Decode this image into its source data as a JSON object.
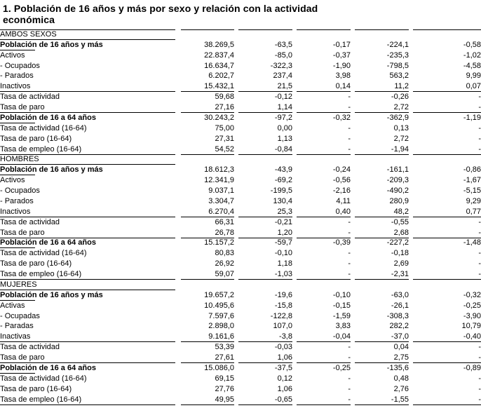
{
  "title": "1. Población de 16 años y más por sexo y relación con la actividad económica",
  "colors": {
    "text": "#000000",
    "background": "#ffffff",
    "rule": "#000000"
  },
  "table": {
    "column_count": 5,
    "empty_value": "-",
    "sections": [
      {
        "name": "AMBOS SEXOS",
        "top_rule": true,
        "rows": [
          {
            "label": "Población de 16 años y más",
            "type": "total",
            "values": [
              "38.269,5",
              "-63,5",
              "-0,17",
              "-224,1",
              "-0,58"
            ]
          },
          {
            "label": "Activos",
            "type": "plain",
            "values": [
              "22.837,4",
              "-85,0",
              "-0,37",
              "-235,3",
              "-1,02"
            ]
          },
          {
            "label": "- Ocupados",
            "type": "plain",
            "values": [
              "16.634,7",
              "-322,3",
              "-1,90",
              "-798,5",
              "-4,58"
            ]
          },
          {
            "label": "- Parados",
            "type": "plain",
            "values": [
              "6.202,7",
              "237,4",
              "3,98",
              "563,2",
              "9,99"
            ]
          },
          {
            "label": "Inactivos",
            "type": "plain",
            "rule_below": true,
            "values": [
              "15.432,1",
              "21,5",
              "0,14",
              "11,2",
              "0,07"
            ]
          },
          {
            "label": "Tasa de actividad",
            "type": "plain",
            "values": [
              "59,68",
              "-0,12",
              "-",
              "-0,26",
              "-"
            ]
          },
          {
            "label": "Tasa de paro",
            "type": "plain",
            "rule_below": true,
            "values": [
              "27,16",
              "1,14",
              "-",
              "2,72",
              "-"
            ]
          },
          {
            "label": "Población de 16 a 64 años",
            "type": "total",
            "values": [
              "30.243,2",
              "-97,2",
              "-0,32",
              "-362,9",
              "-1,19"
            ]
          },
          {
            "label": "Tasa de actividad (16-64)",
            "type": "plain",
            "values": [
              "75,00",
              "0,00",
              "-",
              "0,13",
              "-"
            ]
          },
          {
            "label": "Tasa de paro (16-64)",
            "type": "plain",
            "values": [
              "27,31",
              "1,13",
              "-",
              "2,72",
              "-"
            ]
          },
          {
            "label": "Tasa de empleo (16-64)",
            "type": "plain",
            "rule_below": true,
            "values": [
              "54,52",
              "-0,84",
              "-",
              "-1,94",
              "-"
            ]
          }
        ]
      },
      {
        "name": "HOMBRES",
        "top_rule": false,
        "rows": [
          {
            "label": "Población de 16 años y más",
            "type": "total",
            "values": [
              "18.612,3",
              "-43,9",
              "-0,24",
              "-161,1",
              "-0,86"
            ]
          },
          {
            "label": "Activos",
            "type": "plain",
            "values": [
              "12.341,9",
              "-69,2",
              "-0,56",
              "-209,3",
              "-1,67"
            ]
          },
          {
            "label": "- Ocupados",
            "type": "plain",
            "values": [
              "9.037,1",
              "-199,5",
              "-2,16",
              "-490,2",
              "-5,15"
            ]
          },
          {
            "label": "- Parados",
            "type": "plain",
            "values": [
              "3.304,7",
              "130,4",
              "4,11",
              "280,9",
              "9,29"
            ]
          },
          {
            "label": "Inactivos",
            "type": "plain",
            "rule_below": true,
            "values": [
              "6.270,4",
              "25,3",
              "0,40",
              "48,2",
              "0,77"
            ]
          },
          {
            "label": "Tasa de actividad",
            "type": "plain",
            "values": [
              "66,31",
              "-0,21",
              "-",
              "-0,55",
              "-"
            ]
          },
          {
            "label": "Tasa de paro",
            "type": "plain",
            "rule_below": true,
            "values": [
              "26,78",
              "1,20",
              "-",
              "2,68",
              "-"
            ]
          },
          {
            "label": "Población de 16 a 64 años",
            "type": "total",
            "values": [
              "15.157,2",
              "-59,7",
              "-0,39",
              "-227,2",
              "-1,48"
            ]
          },
          {
            "label": "Tasa de actividad (16-64)",
            "type": "plain",
            "values": [
              "80,83",
              "-0,10",
              "-",
              "-0,18",
              "-"
            ]
          },
          {
            "label": "Tasa de paro (16-64)",
            "type": "plain",
            "values": [
              "26,92",
              "1,18",
              "-",
              "2,69",
              "-"
            ]
          },
          {
            "label": "Tasa de empleo (16-64)",
            "type": "plain",
            "rule_below": true,
            "values": [
              "59,07",
              "-1,03",
              "-",
              "-2,31",
              "-"
            ]
          }
        ]
      },
      {
        "name": "MUJERES",
        "top_rule": false,
        "rows": [
          {
            "label": "Población de 16 años y más",
            "type": "total",
            "values": [
              "19.657,2",
              "-19,6",
              "-0,10",
              "-63,0",
              "-0,32"
            ]
          },
          {
            "label": "Activas",
            "type": "plain",
            "values": [
              "10.495,6",
              "-15,8",
              "-0,15",
              "-26,1",
              "-0,25"
            ]
          },
          {
            "label": "- Ocupadas",
            "type": "plain",
            "values": [
              "7.597,6",
              "-122,8",
              "-1,59",
              "-308,3",
              "-3,90"
            ]
          },
          {
            "label": "- Paradas",
            "type": "plain",
            "values": [
              "2.898,0",
              "107,0",
              "3,83",
              "282,2",
              "10,79"
            ]
          },
          {
            "label": "Inactivas",
            "type": "plain",
            "rule_below": true,
            "values": [
              "9.161,6",
              "-3,8",
              "-0,04",
              "-37,0",
              "-0,40"
            ]
          },
          {
            "label": "Tasa de actividad",
            "type": "plain",
            "values": [
              "53,39",
              "-0,03",
              "-",
              "0,04",
              "-"
            ]
          },
          {
            "label": "Tasa de paro",
            "type": "plain",
            "rule_below": true,
            "values": [
              "27,61",
              "1,06",
              "-",
              "2,75",
              "-"
            ]
          },
          {
            "label": "Población de 16 a 64 años",
            "type": "total",
            "values": [
              "15.086,0",
              "-37,5",
              "-0,25",
              "-135,6",
              "-0,89"
            ]
          },
          {
            "label": "Tasa de actividad (16-64)",
            "type": "plain",
            "values": [
              "69,15",
              "0,12",
              "-",
              "0,48",
              "-"
            ]
          },
          {
            "label": "Tasa de paro (16-64)",
            "type": "plain",
            "values": [
              "27,76",
              "1,06",
              "-",
              "2,76",
              "-"
            ]
          },
          {
            "label": "Tasa de empleo (16-64)",
            "type": "plain",
            "rule_below": true,
            "values": [
              "49,95",
              "-0,65",
              "-",
              "-1,55",
              "-"
            ]
          }
        ]
      }
    ]
  }
}
